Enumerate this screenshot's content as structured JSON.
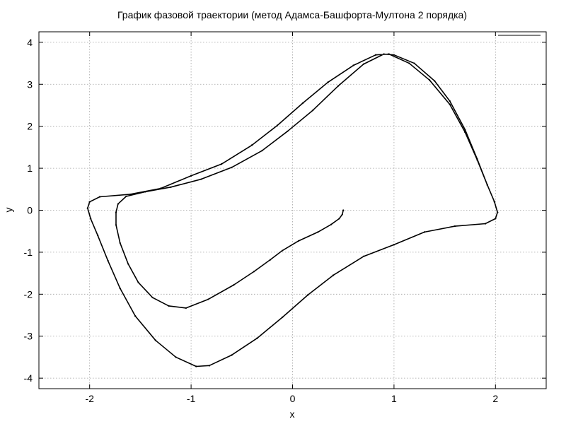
{
  "chart_data": {
    "type": "line",
    "title": "График фазовой траектории (метод Адамса-Башфорта-Мултона 2 порядка)",
    "xlabel": "x",
    "ylabel": "y",
    "xlim": [
      -2.5,
      2.5
    ],
    "ylim": [
      -4.25,
      4.25
    ],
    "xticks": [
      -2,
      -1,
      0,
      1,
      2
    ],
    "yticks": [
      -4,
      -3,
      -2,
      -1,
      0,
      1,
      2,
      3,
      4
    ],
    "grid": true,
    "legend_position": "top-right",
    "line_color": "#000000",
    "series": [
      {
        "name": "",
        "points": [
          [
            0.5,
            0.0
          ],
          [
            0.49,
            -0.1
          ],
          [
            0.46,
            -0.2
          ],
          [
            0.38,
            -0.34
          ],
          [
            0.25,
            -0.52
          ],
          [
            0.06,
            -0.73
          ],
          [
            -0.1,
            -0.96
          ],
          [
            -0.22,
            -1.18
          ],
          [
            -0.38,
            -1.46
          ],
          [
            -0.58,
            -1.78
          ],
          [
            -0.83,
            -2.12
          ],
          [
            -1.05,
            -2.33
          ],
          [
            -1.22,
            -2.28
          ],
          [
            -1.38,
            -2.08
          ],
          [
            -1.52,
            -1.72
          ],
          [
            -1.62,
            -1.28
          ],
          [
            -1.7,
            -0.78
          ],
          [
            -1.74,
            -0.35
          ],
          [
            -1.74,
            -0.05
          ],
          [
            -1.72,
            0.15
          ],
          [
            -1.64,
            0.33
          ],
          [
            -1.45,
            0.44
          ],
          [
            -1.2,
            0.55
          ],
          [
            -0.9,
            0.74
          ],
          [
            -0.6,
            1.02
          ],
          [
            -0.3,
            1.42
          ],
          [
            -0.05,
            1.88
          ],
          [
            0.2,
            2.38
          ],
          [
            0.45,
            2.96
          ],
          [
            0.7,
            3.48
          ],
          [
            0.9,
            3.72
          ],
          [
            1.0,
            3.7
          ],
          [
            1.2,
            3.5
          ],
          [
            1.4,
            3.08
          ],
          [
            1.55,
            2.6
          ],
          [
            1.7,
            1.92
          ],
          [
            1.82,
            1.22
          ],
          [
            1.92,
            0.6
          ],
          [
            1.99,
            0.2
          ],
          [
            2.02,
            -0.05
          ],
          [
            2.0,
            -0.2
          ],
          [
            1.9,
            -0.32
          ],
          [
            1.6,
            -0.38
          ],
          [
            1.3,
            -0.52
          ],
          [
            1.0,
            -0.82
          ],
          [
            0.7,
            -1.1
          ],
          [
            0.4,
            -1.55
          ],
          [
            0.15,
            -2.02
          ],
          [
            -0.1,
            -2.55
          ],
          [
            -0.35,
            -3.05
          ],
          [
            -0.6,
            -3.45
          ],
          [
            -0.82,
            -3.7
          ],
          [
            -0.95,
            -3.72
          ],
          [
            -1.15,
            -3.5
          ],
          [
            -1.35,
            -3.1
          ],
          [
            -1.55,
            -2.52
          ],
          [
            -1.7,
            -1.86
          ],
          [
            -1.82,
            -1.2
          ],
          [
            -1.92,
            -0.6
          ],
          [
            -1.99,
            -0.2
          ],
          [
            -2.02,
            0.05
          ],
          [
            -2.0,
            0.2
          ],
          [
            -1.9,
            0.32
          ],
          [
            -1.6,
            0.38
          ],
          [
            -1.3,
            0.52
          ],
          [
            -1.0,
            0.82
          ],
          [
            -0.7,
            1.1
          ],
          [
            -0.4,
            1.55
          ],
          [
            -0.15,
            2.02
          ],
          [
            0.1,
            2.55
          ],
          [
            0.35,
            3.05
          ],
          [
            0.6,
            3.45
          ],
          [
            0.82,
            3.7
          ],
          [
            0.95,
            3.72
          ],
          [
            1.15,
            3.5
          ],
          [
            1.35,
            3.1
          ],
          [
            1.55,
            2.52
          ],
          [
            1.7,
            1.86
          ],
          [
            1.82,
            1.2
          ],
          [
            1.92,
            0.6
          ],
          [
            1.99,
            0.2
          ],
          [
            2.02,
            -0.05
          ],
          [
            2.0,
            -0.2
          ],
          [
            1.9,
            -0.32
          ],
          [
            1.6,
            -0.38
          ],
          [
            1.3,
            -0.52
          ],
          [
            1.0,
            -0.82
          ],
          [
            0.7,
            -1.1
          ],
          [
            0.4,
            -1.55
          ],
          [
            0.15,
            -2.02
          ],
          [
            -0.1,
            -2.55
          ],
          [
            -0.35,
            -3.05
          ],
          [
            -0.6,
            -3.45
          ],
          [
            -0.82,
            -3.7
          ],
          [
            -0.95,
            -3.72
          ],
          [
            -1.15,
            -3.5
          ],
          [
            -1.35,
            -3.1
          ],
          [
            -1.55,
            -2.52
          ],
          [
            -1.7,
            -1.86
          ],
          [
            -1.82,
            -1.2
          ],
          [
            -1.92,
            -0.6
          ],
          [
            -1.99,
            -0.2
          ],
          [
            -2.02,
            0.05
          ],
          [
            -2.0,
            0.2
          ],
          [
            -1.9,
            0.32
          ],
          [
            -1.6,
            0.38
          ],
          [
            -1.3,
            0.52
          ],
          [
            -1.0,
            0.82
          ],
          [
            -0.7,
            1.1
          ],
          [
            -0.4,
            1.55
          ],
          [
            -0.15,
            2.02
          ],
          [
            0.1,
            2.55
          ],
          [
            0.35,
            3.05
          ],
          [
            0.6,
            3.45
          ],
          [
            0.82,
            3.7
          ],
          [
            0.95,
            3.72
          ],
          [
            1.15,
            3.5
          ],
          [
            1.35,
            3.1
          ],
          [
            1.55,
            2.52
          ],
          [
            1.7,
            1.86
          ],
          [
            1.82,
            1.2
          ],
          [
            1.92,
            0.6
          ],
          [
            1.99,
            0.2
          ],
          [
            2.02,
            -0.05
          ]
        ]
      }
    ]
  }
}
